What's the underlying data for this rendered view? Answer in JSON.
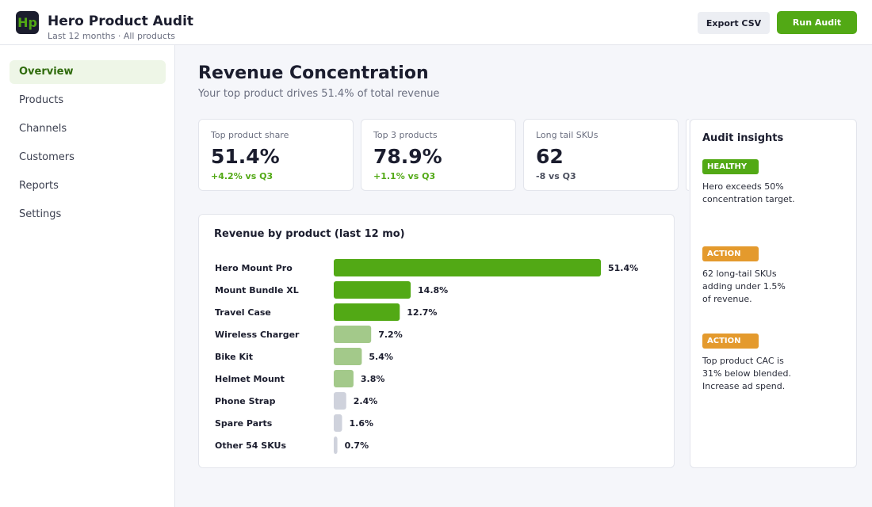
{
  "header": {
    "logo_text": "Hp",
    "title": "Hero Product Audit",
    "subtitle": "Last 12 months · All products",
    "export_label": "Export CSV",
    "run_label": "Run Audit"
  },
  "sidebar": {
    "items": [
      {
        "label": "Overview",
        "active": true
      },
      {
        "label": "Products",
        "active": false
      },
      {
        "label": "Channels",
        "active": false
      },
      {
        "label": "Customers",
        "active": false
      },
      {
        "label": "Reports",
        "active": false
      },
      {
        "label": "Settings",
        "active": false
      }
    ]
  },
  "main": {
    "title": "Revenue Concentration",
    "subtitle": "Your top product drives 51.4% of total revenue"
  },
  "kpis": [
    {
      "label": "Top product share",
      "value": "51.4%",
      "delta": "+4.2% vs Q3"
    },
    {
      "label": "Top 3 products",
      "value": "78.9%",
      "delta": "+1.1% vs Q3"
    },
    {
      "label": "Long tail SKUs",
      "value": "62",
      "delta": "-8 vs Q3"
    }
  ],
  "chart_data": {
    "type": "bar",
    "orientation": "horizontal",
    "title": "Revenue by product (last 12 mo)",
    "categories": [
      "Hero Mount Pro",
      "Mount Bundle XL",
      "Travel Case",
      "Wireless Charger",
      "Bike Kit",
      "Helmet Mount",
      "Phone Strap",
      "Spare Parts",
      "Other 54 SKUs"
    ],
    "values": [
      51.4,
      14.8,
      12.7,
      7.2,
      5.4,
      3.8,
      2.4,
      1.6,
      0.7
    ],
    "value_labels": [
      "51.4%",
      "14.8%",
      "12.7%",
      "7.2%",
      "5.4%",
      "3.8%",
      "2.4%",
      "1.6%",
      "0.7%"
    ],
    "bar_colors": [
      "#52a915",
      "#52a915",
      "#52a915",
      "#a3c98a",
      "#a3c98a",
      "#a3c98a",
      "#cfd2dc",
      "#cfd2dc",
      "#cfd2dc"
    ],
    "xlim": [
      0,
      51.4
    ],
    "grid": false,
    "legend": "none"
  },
  "insights": {
    "title": "Audit insights",
    "items": [
      {
        "badge": "HEALTHY",
        "kind": "healthy",
        "text": "Hero exceeds 50% concentration target."
      },
      {
        "badge": "ACTION",
        "kind": "action",
        "text": "62 long-tail SKUs adding under 1.5% of revenue."
      },
      {
        "badge": "ACTION",
        "kind": "action",
        "text": "Top product CAC is 31% below blended. Increase ad spend."
      }
    ]
  },
  "colors": {
    "accent": "#52a915",
    "warning": "#e49a2d",
    "muted_bar": "#a3c98a",
    "tail_bar": "#cfd2dc"
  }
}
